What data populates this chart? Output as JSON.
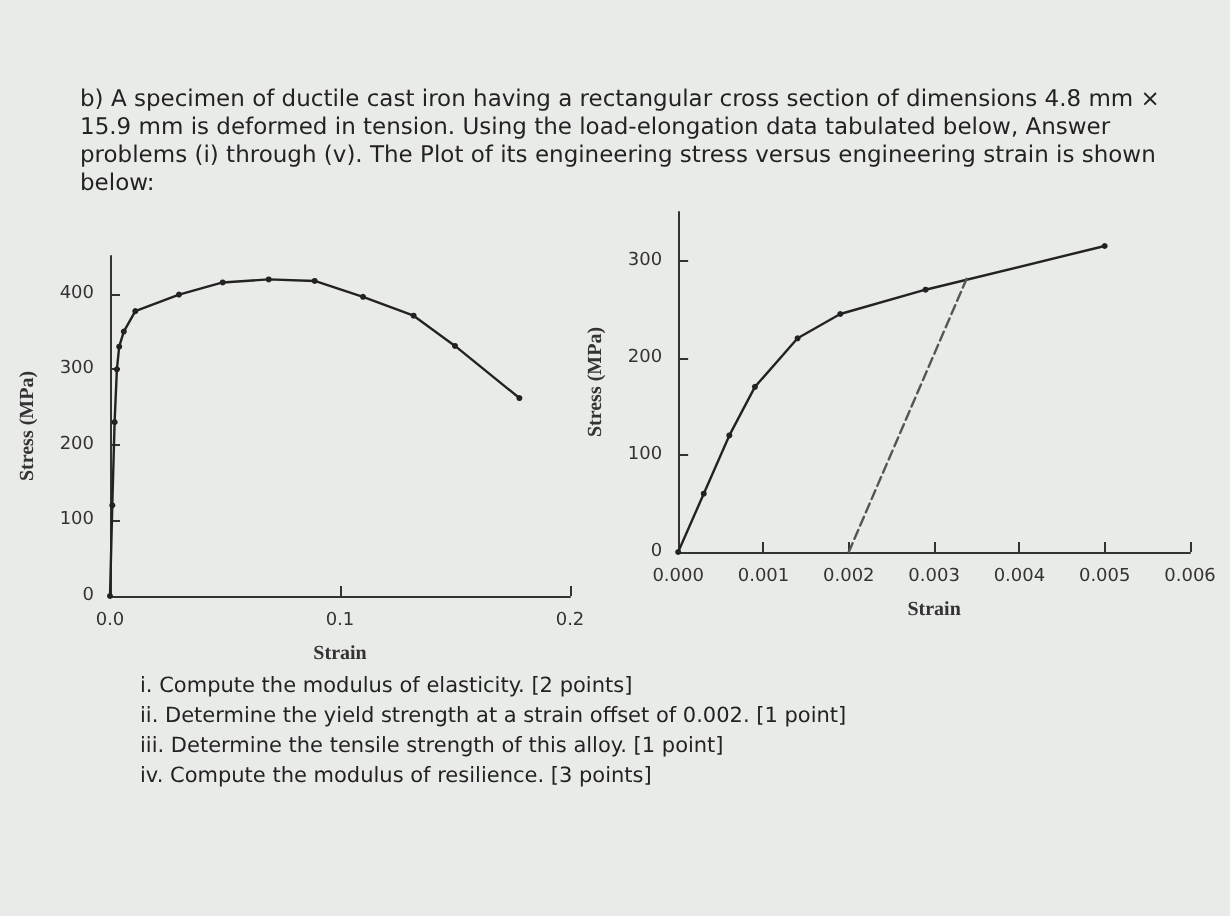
{
  "chart_data": [
    {
      "type": "line",
      "title": "b) A specimen of ductile cast iron having a rectangular cross section of dimensions 4.8 mm × 15.9 mm is deformed in tension. Using the load-elongation data tabulated below, Answer problems (i) through (v). The Plot of its engineering stress versus engineering strain is shown below:",
      "xlabel": "Strain",
      "ylabel": "Stress (MPa)",
      "xlim": [
        0,
        0.2
      ],
      "xticks": [
        {
          "value": 0,
          "label": "0.0"
        },
        0.1,
        0.2
      ],
      "ylim": [
        0,
        450
      ],
      "yticks": [
        0,
        100,
        200,
        300,
        400
      ],
      "marker": "circle",
      "line_style": "solid",
      "annotations": [
        "i. Compute the modulus of elasticity. [2 points]",
        "ii. Determine the yield strength at a strain offset of 0.002. [1 point]",
        "iii. Determine the tensile strength of this alloy. [1 point]",
        "iv. Compute the modulus of resilience. [3 points]"
      ],
      "series": [
        {
          "color": "#222222",
          "x": [
            0,
            0.001,
            0.002,
            0.003,
            0.004,
            0.006,
            0.011,
            0.03,
            0.049,
            0.069,
            0.089,
            0.11,
            0.132,
            0.15,
            0.178
          ],
          "values": [
            0,
            120,
            230,
            300,
            330,
            350,
            377,
            399,
            415,
            419,
            417,
            396,
            371,
            331,
            262
          ]
        }
      ]
    },
    {
      "type": "line",
      "xlabel": "Strain",
      "ylabel": "Stress (MPa)",
      "xlim": [
        0,
        0.006
      ],
      "xticks": [
        {
          "value": 0,
          "label": "0.000"
        },
        {
          "value": 0.001,
          "label": "0.001"
        },
        {
          "value": 0.002,
          "label": "0.002"
        },
        {
          "value": 0.003,
          "label": "0.003"
        },
        {
          "value": 0.004,
          "label": "0.004"
        },
        {
          "value": 0.005,
          "label": "0.005"
        },
        {
          "value": 0.006,
          "label": "0.006"
        }
      ],
      "ylim": [
        0,
        350
      ],
      "yticks": [
        0,
        100,
        200,
        300
      ],
      "marker": "circle",
      "line_style": "solid",
      "series": [
        {
          "color": "#222222",
          "x": [
            0,
            0.0003,
            0.0006,
            0.0009,
            0.0014,
            0.0019,
            0.0029,
            0.005
          ],
          "values": [
            0,
            60,
            120,
            170,
            220,
            245,
            270,
            315
          ]
        },
        {
          "color": "#555555",
          "marker": "none",
          "line_style": "dashed",
          "x": [
            0.002,
            0.0034
          ],
          "values": [
            0,
            285
          ]
        }
      ]
    }
  ]
}
